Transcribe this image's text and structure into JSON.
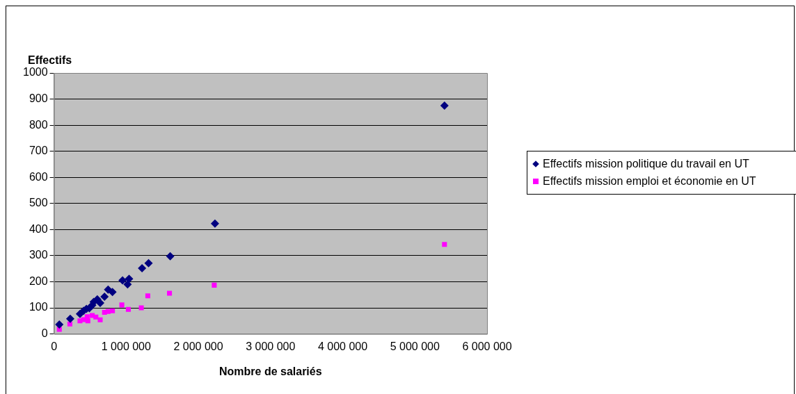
{
  "chart_data": {
    "type": "scatter",
    "xlabel": "Nombre de salariés",
    "ylabel": "Effectifs",
    "xlim": [
      0,
      6000000
    ],
    "xticks": [
      0,
      {
        "value": 1000000,
        "label": "1 000 000"
      },
      {
        "value": 2000000,
        "label": "2 000 000"
      },
      {
        "value": 3000000,
        "label": "3 000 000"
      },
      {
        "value": 4000000,
        "label": "4 000 000"
      },
      {
        "value": 5000000,
        "label": "5 000 000"
      },
      {
        "value": 6000000,
        "label": "6 000 000"
      }
    ],
    "ylim": [
      0,
      1000
    ],
    "yticks": [
      0,
      100,
      200,
      300,
      400,
      500,
      600,
      700,
      800,
      900,
      1000
    ],
    "grid": "y",
    "legend": "right",
    "series": [
      {
        "name": "Effectifs mission politique du travail en UT",
        "color": "#000080",
        "marker": "diamond",
        "x": [
          74000,
          225000,
          360000,
          410000,
          450000,
          490000,
          530000,
          550000,
          600000,
          640000,
          700000,
          750000,
          810000,
          950000,
          1020000,
          1040000,
          1220000,
          1310000,
          1610000,
          2230000,
          5410000
        ],
        "values": [
          36,
          58,
          77,
          89,
          96,
          99,
          110,
          123,
          133,
          119,
          143,
          170,
          161,
          205,
          190,
          211,
          252,
          271,
          298,
          423,
          875
        ]
      },
      {
        "name": "Effectifs mission emploi et économie en UT",
        "color": "#ff00ff",
        "marker": "square",
        "x": [
          74000,
          220000,
          360000,
          410000,
          470000,
          460000,
          530000,
          580000,
          640000,
          700000,
          750000,
          810000,
          940000,
          1030000,
          1210000,
          1300000,
          1600000,
          2220000,
          5410000
        ],
        "values": [
          18,
          38,
          50,
          55,
          50,
          66,
          71,
          65,
          54,
          83,
          86,
          89,
          111,
          94,
          100,
          146,
          156,
          187,
          343
        ]
      }
    ]
  }
}
